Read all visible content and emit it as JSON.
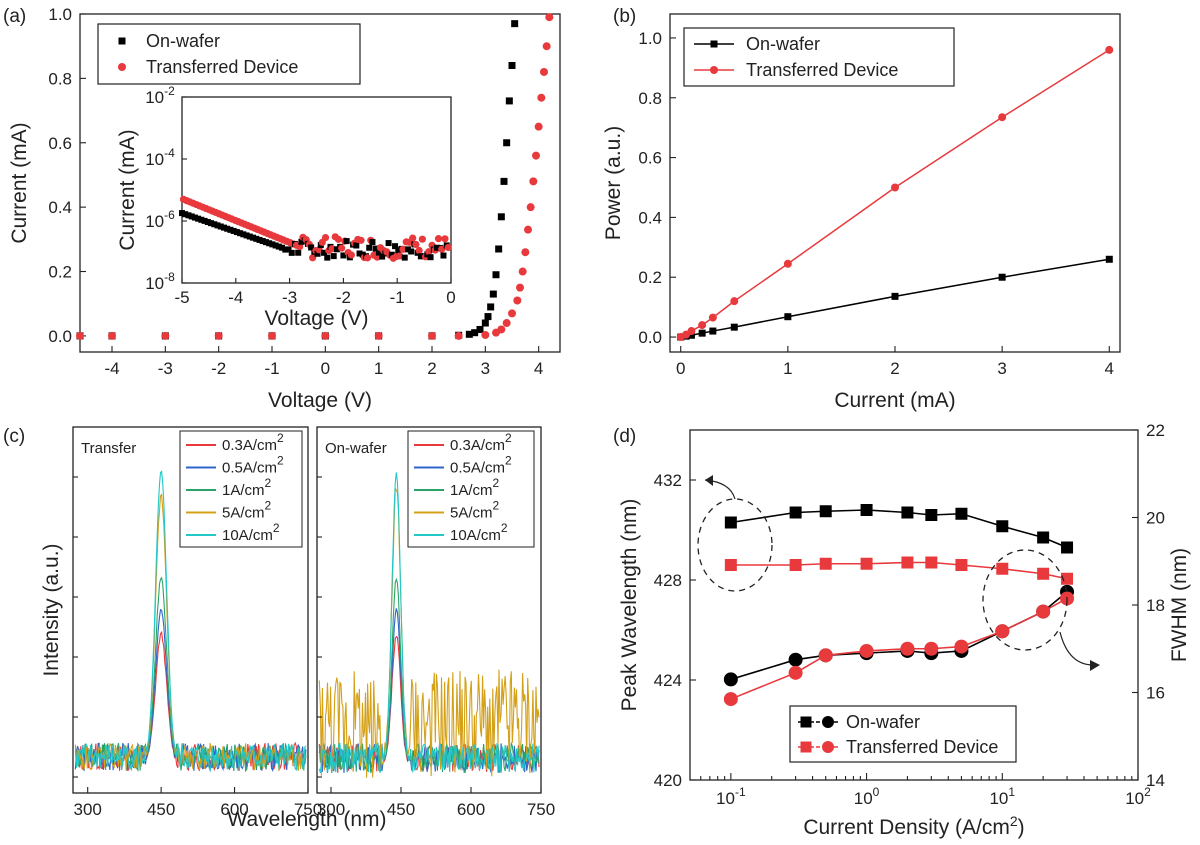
{
  "chart_data": [
    {
      "panel": "(a)",
      "type": "scatter",
      "xlabel": "Voltage (V)",
      "ylabel": "Current (mA)",
      "xlim": [
        -4.6,
        4.4
      ],
      "ylim": [
        -0.05,
        1.0
      ],
      "xticks": [
        "-4",
        "-3",
        "-2",
        "-1",
        "0",
        "1",
        "2",
        "3",
        "4"
      ],
      "yticks": [
        "0.0",
        "0.2",
        "0.4",
        "0.6",
        "0.8",
        "1.0"
      ],
      "legend_position": "top-left",
      "series": [
        {
          "name": "On-wafer",
          "color": "#000000",
          "marker": "square",
          "x": [
            -4.6,
            -4.0,
            -3.0,
            -2.0,
            -1.0,
            0.0,
            1.0,
            2.0,
            2.5,
            2.7,
            2.8,
            2.9,
            3.0,
            3.05,
            3.1,
            3.15,
            3.2,
            3.25,
            3.3,
            3.35,
            3.4,
            3.45,
            3.5,
            3.55
          ],
          "y": [
            0,
            0,
            0,
            0,
            0,
            0,
            0,
            0,
            0.002,
            0.005,
            0.01,
            0.02,
            0.04,
            0.06,
            0.09,
            0.13,
            0.19,
            0.27,
            0.37,
            0.48,
            0.6,
            0.73,
            0.84,
            0.97
          ]
        },
        {
          "name": "Transferred Device",
          "color": "#e8393d",
          "marker": "circle",
          "x": [
            -4.6,
            -4.0,
            -3.0,
            -2.0,
            -1.0,
            0.0,
            1.0,
            2.0,
            2.5,
            3.0,
            3.2,
            3.3,
            3.4,
            3.5,
            3.6,
            3.65,
            3.7,
            3.75,
            3.8,
            3.85,
            3.9,
            3.95,
            4.0,
            4.05,
            4.1,
            4.15,
            4.2
          ],
          "y": [
            0,
            0,
            0,
            0,
            0,
            0,
            0,
            0,
            0,
            0.003,
            0.01,
            0.02,
            0.04,
            0.07,
            0.11,
            0.15,
            0.2,
            0.26,
            0.33,
            0.4,
            0.48,
            0.56,
            0.65,
            0.74,
            0.82,
            0.9,
            0.99
          ]
        }
      ],
      "inset": {
        "type": "scatter",
        "xlabel": "Voltage (V)",
        "ylabel": "Current (mA)",
        "yscale": "log",
        "xlim": [
          -5,
          0
        ],
        "ylim": [
          1e-08,
          0.01
        ],
        "xticks": [
          "-5",
          "-4",
          "-3",
          "-2",
          "-1",
          "0"
        ],
        "yticks": [
          "10-8",
          "10-6",
          "10-4",
          "10-2"
        ]
      }
    },
    {
      "panel": "(b)",
      "type": "line",
      "xlabel": "Current (mA)",
      "ylabel": "Power (a.u.)",
      "xlim": [
        -0.1,
        4.1
      ],
      "ylim": [
        -0.05,
        1.08
      ],
      "xticks": [
        "0",
        "1",
        "2",
        "3",
        "4"
      ],
      "yticks": [
        "0.0",
        "0.2",
        "0.4",
        "0.6",
        "0.8",
        "1.0"
      ],
      "legend_position": "top-left",
      "series": [
        {
          "name": "On-wafer",
          "color": "#000000",
          "marker": "square",
          "x": [
            0,
            0.05,
            0.1,
            0.2,
            0.3,
            0.5,
            1,
            2,
            3,
            4
          ],
          "y": [
            0,
            0.003,
            0.006,
            0.013,
            0.02,
            0.033,
            0.068,
            0.136,
            0.2,
            0.26
          ]
        },
        {
          "name": "Transferred Device",
          "color": "#e8393d",
          "marker": "circle",
          "x": [
            0,
            0.05,
            0.1,
            0.2,
            0.3,
            0.5,
            1,
            2,
            3,
            4
          ],
          "y": [
            0,
            0.008,
            0.02,
            0.04,
            0.065,
            0.12,
            0.245,
            0.5,
            0.735,
            0.96
          ]
        }
      ]
    },
    {
      "panel": "(c)",
      "type": "line",
      "xlabel": "Wavelength (nm)",
      "ylabel": "Intensity (a.u.)",
      "xticks": [
        "300",
        "450",
        "600",
        "750"
      ],
      "subplots": [
        {
          "title": "Transfer",
          "peak_nm": 450
        },
        {
          "title": "On-wafer",
          "peak_nm": 440
        }
      ],
      "series": [
        {
          "name": "0.3A/cm2",
          "color": "#e8393d",
          "peak": 0.38
        },
        {
          "name": "0.5A/cm2",
          "color": "#2f64c8",
          "peak": 0.45
        },
        {
          "name": "1A/cm2",
          "color": "#2aa56a",
          "peak": 0.55
        },
        {
          "name": "5A/cm2",
          "color": "#d4a017",
          "peak": 0.79
        },
        {
          "name": "10A/cm2",
          "color": "#22c7c9",
          "peak": 0.86
        }
      ]
    },
    {
      "panel": "(d)",
      "type": "line",
      "xlabel": "Current Density (A/cm2)",
      "ylabel": "Peak Wavelength (nm)",
      "y2label": "FWHM (nm)",
      "xscale": "log",
      "xlim": [
        0.05,
        100
      ],
      "ylim": [
        420,
        434
      ],
      "y2lim": [
        14,
        22
      ],
      "xticks": [
        "10-1",
        "100",
        "101",
        "102"
      ],
      "yticks": [
        "420",
        "424",
        "428",
        "432"
      ],
      "y2ticks": [
        "14",
        "16",
        "18",
        "20",
        "22"
      ],
      "legend_position": "bottom-center",
      "x": [
        0.1,
        0.3,
        0.5,
        1,
        2,
        3,
        5,
        10,
        20,
        30
      ],
      "series": [
        {
          "name": "On-wafer",
          "color": "#000000",
          "marker": "square",
          "axis": "left",
          "y": [
            430.3,
            430.7,
            430.75,
            430.8,
            430.7,
            430.6,
            430.65,
            430.15,
            429.7,
            429.3
          ]
        },
        {
          "name": "Transferred Device",
          "color": "#e8393d",
          "marker": "square",
          "axis": "left",
          "y": [
            428.6,
            428.6,
            428.65,
            428.65,
            428.7,
            428.7,
            428.6,
            428.45,
            428.25,
            428.05
          ]
        },
        {
          "name": "On-wafer",
          "color": "#000000",
          "marker": "circle",
          "axis": "right",
          "y": [
            16.3,
            16.75,
            16.85,
            16.9,
            16.95,
            16.9,
            16.95,
            17.4,
            17.85,
            18.3
          ]
        },
        {
          "name": "Transferred Device",
          "color": "#e8393d",
          "marker": "circle",
          "axis": "right",
          "y": [
            15.85,
            16.45,
            16.85,
            16.95,
            17.0,
            17.0,
            17.05,
            17.4,
            17.85,
            18.15
          ]
        }
      ]
    }
  ]
}
